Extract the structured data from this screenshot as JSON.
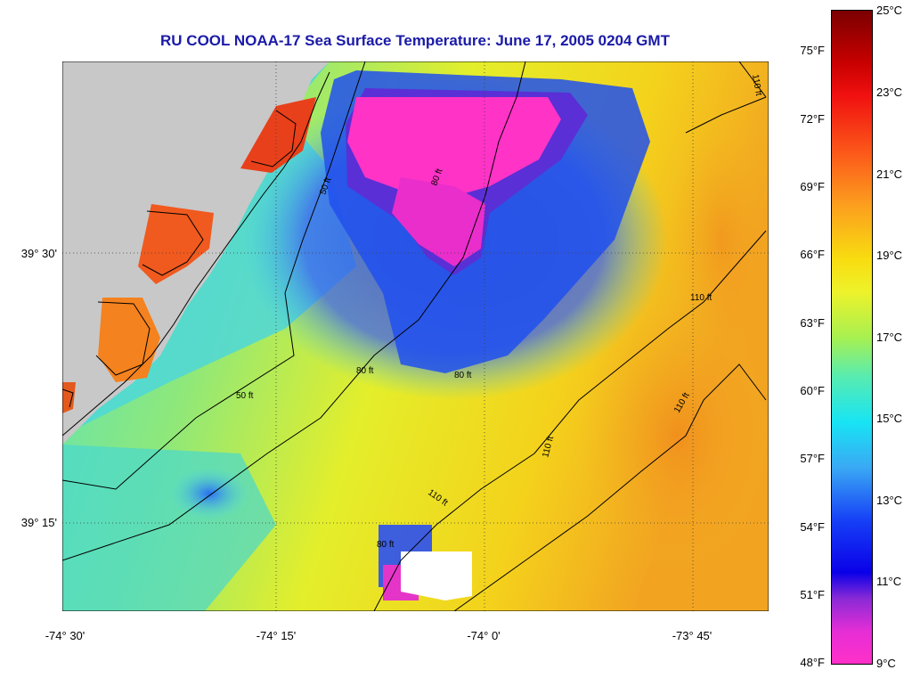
{
  "title": "RU COOL  NOAA-17  Sea Surface Temperature:  June 17, 2005 0204 GMT",
  "map": {
    "lat_labels": [
      "39° 30'",
      "39° 15'"
    ],
    "lon_labels": [
      "-74° 30'",
      "-74° 15'",
      "-74° 0'",
      "-73° 45'"
    ],
    "contour_labels": [
      "50 ft",
      "80 ft",
      "110 ft"
    ],
    "colors": {
      "land": "#c8c8c8",
      "cloud_mask": "#ffffff",
      "grid": "#404040"
    }
  },
  "colorbar": {
    "fahrenheit": [
      "75°F",
      "72°F",
      "69°F",
      "66°F",
      "63°F",
      "60°F",
      "57°F",
      "54°F",
      "51°F",
      "48°F"
    ],
    "celsius": [
      "25°C",
      "23°C",
      "21°C",
      "19°C",
      "17°C",
      "15°C",
      "13°C",
      "11°C",
      "9°C"
    ]
  }
}
